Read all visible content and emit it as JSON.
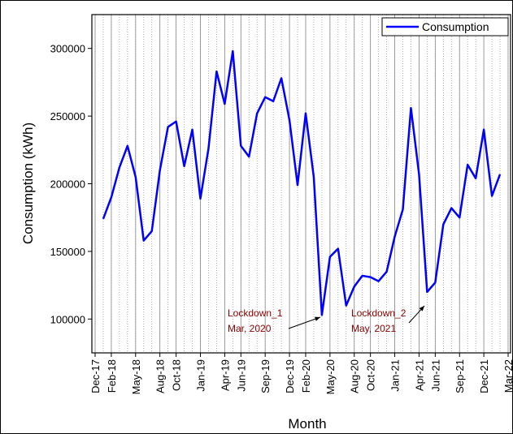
{
  "chart_data": {
    "type": "line",
    "x_label": "Month",
    "y_label": "Consumption (kWh)",
    "x": [
      "2018-01",
      "2018-02",
      "2018-03",
      "2018-04",
      "2018-05",
      "2018-06",
      "2018-07",
      "2018-08",
      "2018-09",
      "2018-10",
      "2018-11",
      "2018-12",
      "2019-01",
      "2019-02",
      "2019-03",
      "2019-04",
      "2019-05",
      "2019-06",
      "2019-07",
      "2019-08",
      "2019-09",
      "2019-10",
      "2019-11",
      "2019-12",
      "2020-01",
      "2020-02",
      "2020-03",
      "2020-04",
      "2020-05",
      "2020-06",
      "2020-07",
      "2020-08",
      "2020-09",
      "2020-10",
      "2020-11",
      "2020-12",
      "2021-01",
      "2021-02",
      "2021-03",
      "2021-04",
      "2021-05",
      "2021-06",
      "2021-07",
      "2021-08",
      "2021-09",
      "2021-10",
      "2021-11",
      "2021-12",
      "2022-01",
      "2022-02"
    ],
    "series": [
      {
        "name": "Consumption",
        "color": "#0000ff",
        "values": [
          174000,
          190000,
          212000,
          228000,
          205000,
          158000,
          165000,
          210000,
          242000,
          246000,
          213000,
          240000,
          189000,
          226000,
          283000,
          259000,
          298000,
          228000,
          220000,
          252000,
          264000,
          261000,
          278000,
          247000,
          199000,
          252000,
          205000,
          103000,
          146000,
          152000,
          110000,
          124000,
          132000,
          131000,
          128000,
          135000,
          161000,
          181000,
          256000,
          207000,
          120000,
          127000,
          170000,
          182000,
          175000,
          214000,
          204000,
          240000,
          191000,
          207000
        ]
      }
    ],
    "xlim": [
      "2017-12",
      "2022-03"
    ],
    "xticks": [
      {
        "value": "2017-12",
        "label": "Dec-17"
      },
      {
        "value": "2018-02",
        "label": "Feb-18"
      },
      {
        "value": "2018-05",
        "label": "May-18"
      },
      {
        "value": "2018-08",
        "label": "Aug-18"
      },
      {
        "value": "2018-10",
        "label": "Oct-18"
      },
      {
        "value": "2019-01",
        "label": "Jan-19"
      },
      {
        "value": "2019-04",
        "label": "Apr-19"
      },
      {
        "value": "2019-06",
        "label": "Jun-19"
      },
      {
        "value": "2019-09",
        "label": "Sep-19"
      },
      {
        "value": "2019-12",
        "label": "Dec-19"
      },
      {
        "value": "2020-02",
        "label": "Feb-20"
      },
      {
        "value": "2020-05",
        "label": "May-20"
      },
      {
        "value": "2020-08",
        "label": "Aug-20"
      },
      {
        "value": "2020-10",
        "label": "Oct-20"
      },
      {
        "value": "2021-01",
        "label": "Jan-21"
      },
      {
        "value": "2021-04",
        "label": "Apr-21"
      },
      {
        "value": "2021-06",
        "label": "Jun-21"
      },
      {
        "value": "2021-09",
        "label": "Sep-21"
      },
      {
        "value": "2021-12",
        "label": "Dec-21"
      },
      {
        "value": "2022-03",
        "label": "Mar-22"
      }
    ],
    "ylim": [
      75000,
      325000
    ],
    "yticks": [
      100000,
      150000,
      200000,
      250000,
      300000
    ],
    "grid": true,
    "minor_grid": true,
    "legend": "upper right",
    "annotations": [
      {
        "text": [
          "Lockdown_1",
          "Mar, 2020"
        ],
        "color": "#8b0000",
        "target": "2020-03"
      },
      {
        "text": [
          "Lockdown_2",
          "May, 2021"
        ],
        "color": "#8b0000",
        "target": "2021-05"
      }
    ]
  }
}
